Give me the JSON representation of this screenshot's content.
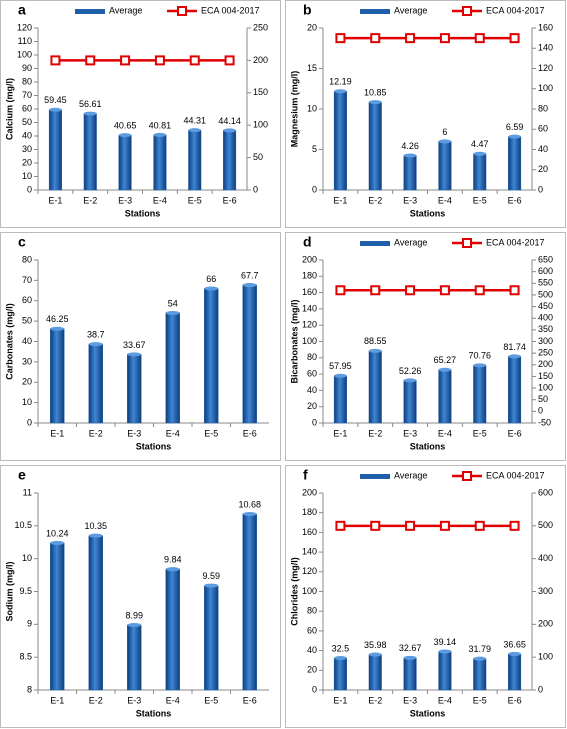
{
  "chart_data": [
    {
      "type": "bar",
      "panel": "a",
      "ylabel": "Calcium  (mg/l)",
      "xlabel": "Stations",
      "categories": [
        "E-1",
        "E-2",
        "E-3",
        "E-4",
        "E-5",
        "E-6"
      ],
      "series": [
        {
          "name": "Average",
          "color": "#1f5fa8",
          "values": [
            59.45,
            56.61,
            40.65,
            40.81,
            44.31,
            44.14
          ]
        },
        {
          "name": "ECA 004-2017",
          "color": "#e00000",
          "type": "line",
          "axis": "y2",
          "values": [
            200,
            200,
            200,
            200,
            200,
            200
          ]
        }
      ],
      "ylim": [
        0,
        120
      ],
      "yticks": [
        0,
        10,
        20,
        30,
        40,
        50,
        60,
        70,
        80,
        90,
        100,
        110,
        120
      ],
      "y2lim": [
        0,
        250
      ],
      "y2ticks": [
        0,
        50,
        100,
        150,
        200,
        250
      ]
    },
    {
      "type": "bar",
      "panel": "b",
      "ylabel": "Magnesium  (mg/l)",
      "xlabel": "Stations",
      "categories": [
        "E-1",
        "E-2",
        "E-3",
        "E-4",
        "E-5",
        "E-6"
      ],
      "series": [
        {
          "name": "Average",
          "color": "#1f5fa8",
          "values": [
            12.19,
            10.85,
            4.26,
            6,
            4.47,
            6.59
          ]
        },
        {
          "name": "ECA 004-2017",
          "color": "#e00000",
          "type": "line",
          "axis": "y2",
          "values": [
            150,
            150,
            150,
            150,
            150,
            150
          ]
        }
      ],
      "ylim": [
        0,
        20
      ],
      "yticks": [
        0,
        5,
        10,
        15,
        20
      ],
      "y2lim": [
        0,
        160
      ],
      "y2ticks": [
        0,
        20,
        40,
        60,
        80,
        100,
        120,
        140,
        160
      ]
    },
    {
      "type": "bar",
      "panel": "c",
      "ylabel": "Carbonates  (mg/l)",
      "xlabel": "Stations",
      "categories": [
        "E-1",
        "E-2",
        "E-3",
        "E-4",
        "E-5",
        "E-6"
      ],
      "series": [
        {
          "color": "#1f5fa8",
          "values": [
            46.25,
            38.7,
            33.67,
            54,
            66,
            67.7
          ]
        }
      ],
      "ylim": [
        0,
        80
      ],
      "yticks": [
        0,
        10,
        20,
        30,
        40,
        50,
        60,
        70,
        80
      ]
    },
    {
      "type": "bar",
      "panel": "d",
      "ylabel": "Bicarbonates  (mg/l)",
      "xlabel": "Stations",
      "categories": [
        "E-1",
        "E-2",
        "E-3",
        "E-4",
        "E-5",
        "E-6"
      ],
      "series": [
        {
          "name": "Average",
          "color": "#1f5fa8",
          "values": [
            57.95,
            88.55,
            52.26,
            65.27,
            70.76,
            81.74
          ]
        },
        {
          "name": "ECA 004-2017",
          "color": "#e00000",
          "type": "line",
          "axis": "y2",
          "values": [
            520,
            520,
            520,
            520,
            520,
            520
          ]
        }
      ],
      "ylim": [
        0,
        200
      ],
      "yticks": [
        0,
        20,
        40,
        60,
        80,
        100,
        120,
        140,
        160,
        180,
        200
      ],
      "y2lim": [
        -50,
        650
      ],
      "y2ticks": [
        -50,
        0,
        50,
        100,
        150,
        200,
        250,
        300,
        350,
        400,
        450,
        500,
        550,
        600,
        650
      ]
    },
    {
      "type": "bar",
      "panel": "e",
      "ylabel": "Sodium  (mg/l)",
      "xlabel": "Stations",
      "categories": [
        "E-1",
        "E-2",
        "E-3",
        "E-4",
        "E-5",
        "E-6"
      ],
      "series": [
        {
          "color": "#1f5fa8",
          "values": [
            10.24,
            10.35,
            8.99,
            9.84,
            9.59,
            10.68
          ]
        }
      ],
      "ylim": [
        8,
        11
      ],
      "yticks": [
        8,
        8.5,
        9,
        9.5,
        10,
        10.5,
        11
      ]
    },
    {
      "type": "bar",
      "panel": "f",
      "ylabel": "Chlorides  (mg/l)",
      "xlabel": "Stations",
      "categories": [
        "E-1",
        "E-2",
        "E-3",
        "E-4",
        "E-5",
        "E-6"
      ],
      "series": [
        {
          "name": "Average",
          "color": "#1f5fa8",
          "values": [
            32.5,
            35.98,
            32.67,
            39.14,
            31.79,
            36.65
          ]
        },
        {
          "name": "ECA 004-2017",
          "color": "#e00000",
          "type": "line",
          "axis": "y2",
          "values": [
            500,
            500,
            500,
            500,
            500,
            500
          ]
        }
      ],
      "ylim": [
        0,
        200
      ],
      "yticks": [
        0,
        20,
        40,
        60,
        80,
        100,
        120,
        140,
        160,
        180,
        200
      ],
      "y2lim": [
        0,
        600
      ],
      "y2ticks": [
        0,
        100,
        200,
        300,
        400,
        500,
        600
      ]
    }
  ]
}
